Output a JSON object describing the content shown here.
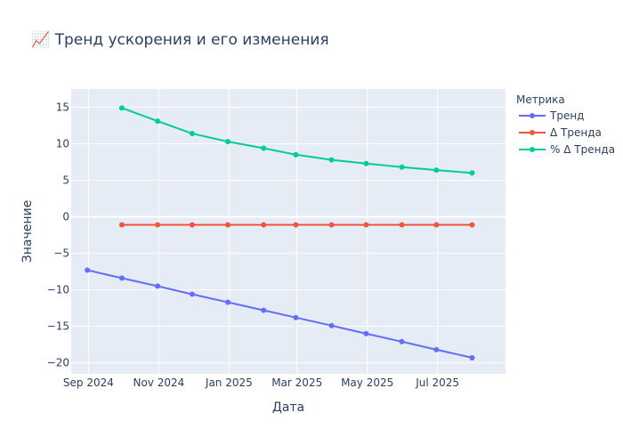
{
  "chart_data": {
    "type": "line",
    "title": "📈 Тренд ускорения и его изменения",
    "xlabel": "Дата",
    "ylabel": "Значение",
    "x_ticks": [
      {
        "label": "Sep 2024",
        "date": "2024-09-01"
      },
      {
        "label": "Nov 2024",
        "date": "2024-11-01"
      },
      {
        "label": "Jan 2025",
        "date": "2025-01-01"
      },
      {
        "label": "Mar 2025",
        "date": "2025-03-01"
      },
      {
        "label": "May 2025",
        "date": "2025-05-01"
      },
      {
        "label": "Jul 2025",
        "date": "2025-07-01"
      }
    ],
    "xlim": [
      "2024-08-17",
      "2025-08-29"
    ],
    "ylim": [
      -21.5,
      17.5
    ],
    "y_ticks": [
      15,
      10,
      5,
      0,
      -5,
      -10,
      -15,
      -20
    ],
    "y_tick_labels": [
      "15",
      "10",
      "5",
      "0",
      "−5",
      "−10",
      "−15",
      "−20"
    ],
    "legend_title": "Метрика",
    "legend_position": "top-right",
    "grid": true,
    "series": [
      {
        "name": "Тренд",
        "color": "#636efa",
        "points": [
          {
            "x": "2024-08-31",
            "y": -7.3
          },
          {
            "x": "2024-09-30",
            "y": -8.4
          },
          {
            "x": "2024-10-31",
            "y": -9.5
          },
          {
            "x": "2024-11-30",
            "y": -10.6
          },
          {
            "x": "2024-12-31",
            "y": -11.7
          },
          {
            "x": "2025-01-31",
            "y": -12.8
          },
          {
            "x": "2025-02-28",
            "y": -13.8
          },
          {
            "x": "2025-03-31",
            "y": -14.9
          },
          {
            "x": "2025-04-30",
            "y": -16.0
          },
          {
            "x": "2025-05-31",
            "y": -17.1
          },
          {
            "x": "2025-06-30",
            "y": -18.2
          },
          {
            "x": "2025-07-31",
            "y": -19.3
          }
        ]
      },
      {
        "name": "Δ Тренда",
        "color": "#ef553b",
        "points": [
          {
            "x": "2024-09-30",
            "y": -1.1
          },
          {
            "x": "2024-10-31",
            "y": -1.1
          },
          {
            "x": "2024-11-30",
            "y": -1.1
          },
          {
            "x": "2024-12-31",
            "y": -1.1
          },
          {
            "x": "2025-01-31",
            "y": -1.1
          },
          {
            "x": "2025-02-28",
            "y": -1.1
          },
          {
            "x": "2025-03-31",
            "y": -1.1
          },
          {
            "x": "2025-04-30",
            "y": -1.1
          },
          {
            "x": "2025-05-31",
            "y": -1.1
          },
          {
            "x": "2025-06-30",
            "y": -1.1
          },
          {
            "x": "2025-07-31",
            "y": -1.1
          }
        ]
      },
      {
        "name": "% Δ Тренда",
        "color": "#00cc96",
        "points": [
          {
            "x": "2024-09-30",
            "y": 14.9
          },
          {
            "x": "2024-10-31",
            "y": 13.1
          },
          {
            "x": "2024-11-30",
            "y": 11.4
          },
          {
            "x": "2024-12-31",
            "y": 10.3
          },
          {
            "x": "2025-01-31",
            "y": 9.4
          },
          {
            "x": "2025-02-28",
            "y": 8.5
          },
          {
            "x": "2025-03-31",
            "y": 7.8
          },
          {
            "x": "2025-04-30",
            "y": 7.3
          },
          {
            "x": "2025-05-31",
            "y": 6.8
          },
          {
            "x": "2025-06-30",
            "y": 6.4
          },
          {
            "x": "2025-07-31",
            "y": 6.0
          }
        ]
      }
    ]
  }
}
